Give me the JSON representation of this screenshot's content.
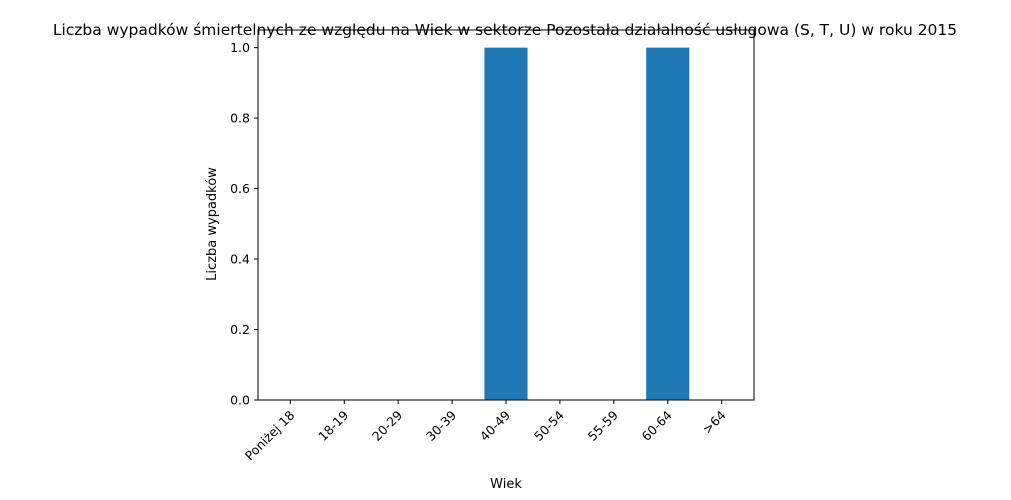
{
  "chart_data": {
    "type": "bar",
    "title": "Liczba wypadków śmiertelnych ze względu na Wiek w sektorze Pozostała działalność usługowa  (S, T, U)   w roku 2015",
    "xlabel": "Wiek",
    "ylabel": "Liczba wypadków",
    "categories": [
      "Poniżej 18",
      "18-19",
      "20-29",
      "30-39",
      "40-49",
      "50-54",
      "55-59",
      "60-64",
      ">64"
    ],
    "values": [
      0,
      0,
      0,
      0,
      1,
      0,
      0,
      1,
      0
    ],
    "ylim": [
      0,
      1.05
    ],
    "yticks": [
      "0.0",
      "0.2",
      "0.4",
      "0.6",
      "0.8",
      "1.0"
    ],
    "grid": false,
    "legend": "none",
    "bar_color": "#1f77b4"
  }
}
